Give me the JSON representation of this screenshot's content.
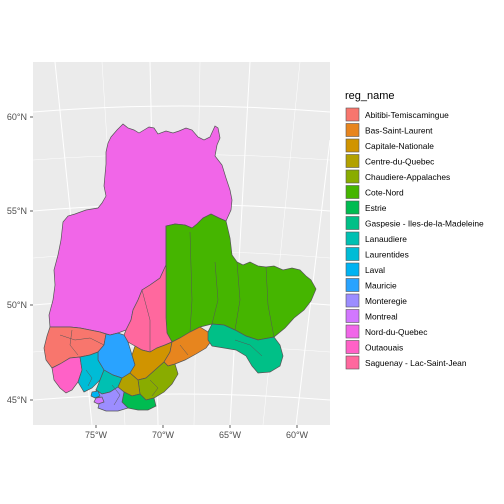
{
  "chart_data": {
    "type": "map",
    "legend_title": "reg_name",
    "legend_placement": "right",
    "x_ticks": [
      "75°W",
      "70°W",
      "65°W",
      "60°W"
    ],
    "y_ticks": [
      "60°N",
      "55°N",
      "50°N",
      "45°N"
    ],
    "regions": [
      {
        "name": "Abitibi-Temiscamingue",
        "color": "#F8766D"
      },
      {
        "name": "Bas-Saint-Laurent",
        "color": "#E7851E"
      },
      {
        "name": "Capitale-Nationale",
        "color": "#D09400"
      },
      {
        "name": "Centre-du-Quebec",
        "color": "#B2A100"
      },
      {
        "name": "Chaudiere-Appalaches",
        "color": "#89AC00"
      },
      {
        "name": "Cote-Nord",
        "color": "#45B500"
      },
      {
        "name": "Estrie",
        "color": "#00BC51"
      },
      {
        "name": "Gaspesie - Iles-de-la-Madeleine",
        "color": "#00C087"
      },
      {
        "name": "Lanaudiere",
        "color": "#00C0B2"
      },
      {
        "name": "Laurentides",
        "color": "#00BCD6"
      },
      {
        "name": "Laval",
        "color": "#00B3F2"
      },
      {
        "name": "Mauricie",
        "color": "#29A3FF"
      },
      {
        "name": "Monteregie",
        "color": "#9C8DFF"
      },
      {
        "name": "Montreal",
        "color": "#D277FF"
      },
      {
        "name": "Nord-du-Quebec",
        "color": "#F166E8"
      },
      {
        "name": "Outaouais",
        "color": "#FF61C7"
      },
      {
        "name": "Saguenay - Lac-Saint-Jean",
        "color": "#FF689E"
      }
    ]
  }
}
